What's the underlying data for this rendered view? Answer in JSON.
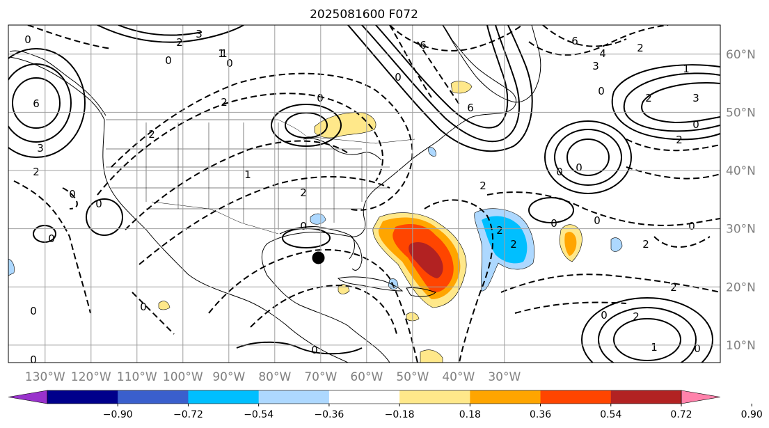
{
  "title": "2025081600 F072",
  "map": {
    "projection": "PlateCarree",
    "lon_range": [
      -138,
      17
    ],
    "lat_range": [
      7,
      65
    ],
    "grid": true,
    "center_marker": {
      "lon": -70.5,
      "lat": 25
    },
    "lon_labels": [
      "130°W",
      "120°W",
      "110°W",
      "100°W",
      "90°W",
      "80°W",
      "70°W",
      "60°W",
      "50°W",
      "40°W",
      "30°W"
    ],
    "lat_labels": [
      "10°N",
      "20°N",
      "30°N",
      "40°N",
      "50°N",
      "60°N"
    ],
    "contour_labels": [
      "0",
      "3",
      "6",
      "0",
      "2",
      "1",
      "0",
      "3",
      "6",
      "0",
      "2",
      "1",
      "0",
      "2",
      "0",
      "6",
      "4",
      "2",
      "3",
      "6",
      "0",
      "2",
      "3",
      "1",
      "0",
      "2",
      "0",
      "0",
      "0",
      "2",
      "0",
      "0",
      "2",
      "1",
      "2",
      "0",
      "0",
      "2",
      "0",
      "2",
      "0",
      "0",
      "2",
      "0",
      "2",
      "2",
      "0",
      "0",
      "0",
      "1"
    ]
  },
  "colorbar": {
    "ticks": [
      "−0.90",
      "−0.72",
      "−0.54",
      "−0.36",
      "−0.18",
      "0.18",
      "0.36",
      "0.54",
      "0.72",
      "0.90"
    ],
    "colors": [
      "#9932cc",
      "#00008b",
      "#3a5fcd",
      "#00bfff",
      "#add8ff",
      "#ffffff",
      "#ffe88a",
      "#ffa500",
      "#ff4500",
      "#b22222",
      "#ff82ab"
    ]
  }
}
